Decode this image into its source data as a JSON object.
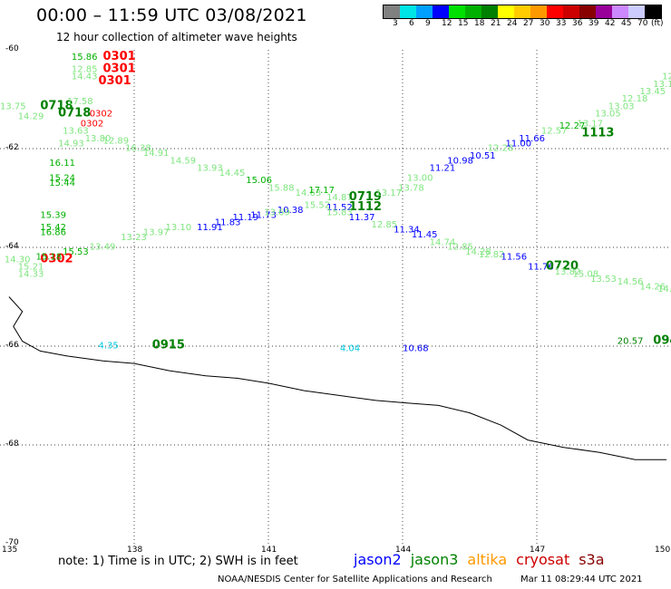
{
  "header": {
    "title": "00:00 – 11:59 UTC 03/08/2021",
    "subtitle": "12 hour collection of altimeter wave heights"
  },
  "legend": {
    "colors": [
      "#808080",
      "#00e5e5",
      "#00a0ff",
      "#0000ff",
      "#00e000",
      "#00b000",
      "#008000",
      "#ffff00",
      "#ffcc00",
      "#ff9900",
      "#ff0000",
      "#cc0000",
      "#880000",
      "#990099",
      "#cc88ff",
      "#ccccff",
      "#000000"
    ],
    "labels": [
      "3",
      "6",
      "9",
      "12",
      "15",
      "18",
      "21",
      "24",
      "27",
      "30",
      "33",
      "36",
      "39",
      "42",
      "45",
      "70",
      "(ft)"
    ]
  },
  "axes": {
    "x_ticks": [
      "135",
      "138",
      "141",
      "144",
      "147",
      "150"
    ],
    "y_ticks": [
      "-60",
      "-62",
      "-64",
      "-66",
      "-68",
      "-70"
    ]
  },
  "map": {
    "lon_range": [
      135,
      150
    ],
    "lat_range": [
      -70,
      -60
    ],
    "grid_lons": [
      138,
      141,
      144,
      147
    ],
    "grid_lats": [
      -62,
      -64,
      -66,
      -68
    ],
    "coastline": [
      [
        135.2,
        -65.0
      ],
      [
        135.5,
        -65.3
      ],
      [
        135.3,
        -65.6
      ],
      [
        135.5,
        -65.9
      ],
      [
        135.9,
        -66.1
      ],
      [
        136.5,
        -66.2
      ],
      [
        137.3,
        -66.3
      ],
      [
        138.0,
        -66.35
      ],
      [
        138.8,
        -66.5
      ],
      [
        139.6,
        -66.6
      ],
      [
        140.3,
        -66.65
      ],
      [
        141.0,
        -66.75
      ],
      [
        141.8,
        -66.9
      ],
      [
        142.6,
        -67.0
      ],
      [
        143.4,
        -67.1
      ],
      [
        144.1,
        -67.15
      ],
      [
        144.8,
        -67.2
      ],
      [
        145.5,
        -67.35
      ],
      [
        146.2,
        -67.6
      ],
      [
        146.8,
        -67.9
      ],
      [
        147.6,
        -68.05
      ],
      [
        148.4,
        -68.15
      ],
      [
        149.2,
        -68.3
      ],
      [
        149.9,
        -68.3
      ]
    ],
    "labels": [
      {
        "text": "15.86",
        "lon": 136.6,
        "lat": -60.2,
        "color": "#00b000"
      },
      {
        "text": "0301",
        "lon": 137.3,
        "lat": -60.2,
        "color": "#ff0000",
        "bold": true
      },
      {
        "text": "12.85",
        "lon": 136.6,
        "lat": -60.45,
        "color": "#7fe57f"
      },
      {
        "text": "0301",
        "lon": 137.3,
        "lat": -60.45,
        "color": "#ff0000",
        "bold": true
      },
      {
        "text": "14.43",
        "lon": 136.6,
        "lat": -60.6,
        "color": "#7fe57f"
      },
      {
        "text": "0301",
        "lon": 137.2,
        "lat": -60.7,
        "color": "#ff0000",
        "bold": true
      },
      {
        "text": "13.75",
        "lon": 135.0,
        "lat": -61.2,
        "color": "#7fe57f"
      },
      {
        "text": "0718",
        "lon": 135.9,
        "lat": -61.2,
        "color": "#008000",
        "bold": true
      },
      {
        "text": "17.58",
        "lon": 136.5,
        "lat": -61.1,
        "color": "#7fe57f"
      },
      {
        "text": "0718",
        "lon": 136.3,
        "lat": -61.35,
        "color": "#008000",
        "bold": true
      },
      {
        "text": "0302",
        "lon": 137.0,
        "lat": -61.35,
        "color": "#ff0000"
      },
      {
        "text": "14.29",
        "lon": 135.4,
        "lat": -61.4,
        "color": "#7fe57f"
      },
      {
        "text": "0302",
        "lon": 136.8,
        "lat": -61.55,
        "color": "#ff0000"
      },
      {
        "text": "13.63",
        "lon": 136.4,
        "lat": -61.7,
        "color": "#7fe57f"
      },
      {
        "text": "13.80",
        "lon": 136.9,
        "lat": -61.85,
        "color": "#7fe57f"
      },
      {
        "text": "14.93",
        "lon": 136.3,
        "lat": -61.95,
        "color": "#7fe57f"
      },
      {
        "text": "12.89",
        "lon": 137.3,
        "lat": -61.9,
        "color": "#7fe57f"
      },
      {
        "text": "16.38",
        "lon": 137.8,
        "lat": -62.05,
        "color": "#7fe57f"
      },
      {
        "text": "14.91",
        "lon": 138.2,
        "lat": -62.15,
        "color": "#7fe57f"
      },
      {
        "text": "14.59",
        "lon": 138.8,
        "lat": -62.3,
        "color": "#7fe57f"
      },
      {
        "text": "13.93",
        "lon": 139.4,
        "lat": -62.45,
        "color": "#7fe57f"
      },
      {
        "text": "14.45",
        "lon": 139.9,
        "lat": -62.55,
        "color": "#7fe57f"
      },
      {
        "text": "15.06",
        "lon": 140.5,
        "lat": -62.7,
        "color": "#00b000"
      },
      {
        "text": "15.88",
        "lon": 141.0,
        "lat": -62.85,
        "color": "#7fe57f"
      },
      {
        "text": "14.63",
        "lon": 141.6,
        "lat": -62.95,
        "color": "#7fe57f"
      },
      {
        "text": "17.17",
        "lon": 141.9,
        "lat": -62.9,
        "color": "#00b000"
      },
      {
        "text": "14.87",
        "lon": 142.3,
        "lat": -63.05,
        "color": "#7fe57f"
      },
      {
        "text": "0719",
        "lon": 142.8,
        "lat": -63.05,
        "color": "#008000",
        "bold": true
      },
      {
        "text": "13.17",
        "lon": 143.4,
        "lat": -62.95,
        "color": "#7fe57f"
      },
      {
        "text": "13.78",
        "lon": 143.9,
        "lat": -62.85,
        "color": "#7fe57f"
      },
      {
        "text": "13.00",
        "lon": 144.1,
        "lat": -62.65,
        "color": "#7fe57f"
      },
      {
        "text": "11.21",
        "lon": 144.6,
        "lat": -62.45,
        "color": "#0000ff"
      },
      {
        "text": "10.98",
        "lon": 145.0,
        "lat": -62.3,
        "color": "#0000ff"
      },
      {
        "text": "10.51",
        "lon": 145.5,
        "lat": -62.2,
        "color": "#0000ff"
      },
      {
        "text": "12.28",
        "lon": 145.9,
        "lat": -62.05,
        "color": "#7fe57f"
      },
      {
        "text": "11.00",
        "lon": 146.3,
        "lat": -61.95,
        "color": "#0000ff"
      },
      {
        "text": "11.66",
        "lon": 146.6,
        "lat": -61.85,
        "color": "#0000ff"
      },
      {
        "text": "12.57",
        "lon": 147.1,
        "lat": -61.7,
        "color": "#7fe57f"
      },
      {
        "text": "12.27",
        "lon": 147.5,
        "lat": -61.6,
        "color": "#00b000"
      },
      {
        "text": "13.17",
        "lon": 147.9,
        "lat": -61.55,
        "color": "#7fe57f"
      },
      {
        "text": "1113",
        "lon": 148.0,
        "lat": -61.75,
        "color": "#008000",
        "bold": true
      },
      {
        "text": "13.05",
        "lon": 148.3,
        "lat": -61.35,
        "color": "#7fe57f"
      },
      {
        "text": "13.03",
        "lon": 148.6,
        "lat": -61.2,
        "color": "#7fe57f"
      },
      {
        "text": "12.18",
        "lon": 148.9,
        "lat": -61.05,
        "color": "#7fe57f"
      },
      {
        "text": "13.45",
        "lon": 149.3,
        "lat": -60.9,
        "color": "#7fe57f"
      },
      {
        "text": "13.14",
        "lon": 149.6,
        "lat": -60.75,
        "color": "#7fe57f"
      },
      {
        "text": "12.1",
        "lon": 149.8,
        "lat": -60.6,
        "color": "#7fe57f"
      },
      {
        "text": "16.11",
        "lon": 136.1,
        "lat": -62.35,
        "color": "#00b000"
      },
      {
        "text": "15.24",
        "lon": 136.1,
        "lat": -62.65,
        "color": "#00b000"
      },
      {
        "text": "15.44",
        "lon": 136.1,
        "lat": -62.75,
        "color": "#00b000"
      },
      {
        "text": "15.39",
        "lon": 135.9,
        "lat": -63.4,
        "color": "#00b000"
      },
      {
        "text": "15.42",
        "lon": 135.9,
        "lat": -63.65,
        "color": "#00b000"
      },
      {
        "text": "16.86",
        "lon": 135.9,
        "lat": -63.75,
        "color": "#00b000"
      },
      {
        "text": "10.38",
        "lon": 141.2,
        "lat": -63.3,
        "color": "#0000ff"
      },
      {
        "text": "15.52",
        "lon": 141.8,
        "lat": -63.2,
        "color": "#7fe57f"
      },
      {
        "text": "11.52",
        "lon": 142.3,
        "lat": -63.25,
        "color": "#0000ff"
      },
      {
        "text": "1112",
        "lon": 142.8,
        "lat": -63.25,
        "color": "#008000",
        "bold": true
      },
      {
        "text": "15.83",
        "lon": 142.3,
        "lat": -63.35,
        "color": "#7fe57f"
      },
      {
        "text": "11.37",
        "lon": 142.8,
        "lat": -63.45,
        "color": "#0000ff"
      },
      {
        "text": "12.85",
        "lon": 143.3,
        "lat": -63.6,
        "color": "#7fe57f"
      },
      {
        "text": "11.34",
        "lon": 143.8,
        "lat": -63.7,
        "color": "#0000ff"
      },
      {
        "text": "11.45",
        "lon": 144.2,
        "lat": -63.8,
        "color": "#0000ff"
      },
      {
        "text": "14.74",
        "lon": 144.6,
        "lat": -63.95,
        "color": "#7fe57f"
      },
      {
        "text": "12.85",
        "lon": 145.0,
        "lat": -64.05,
        "color": "#7fe57f"
      },
      {
        "text": "14.28",
        "lon": 145.4,
        "lat": -64.15,
        "color": "#7fe57f"
      },
      {
        "text": "12.82",
        "lon": 145.7,
        "lat": -64.2,
        "color": "#7fe57f"
      },
      {
        "text": "11.56",
        "lon": 146.2,
        "lat": -64.25,
        "color": "#0000ff"
      },
      {
        "text": "11.76",
        "lon": 146.8,
        "lat": -64.45,
        "color": "#0000ff"
      },
      {
        "text": "0720",
        "lon": 147.2,
        "lat": -64.45,
        "color": "#008000",
        "bold": true
      },
      {
        "text": "13.82",
        "lon": 147.4,
        "lat": -64.55,
        "color": "#7fe57f"
      },
      {
        "text": "15.08",
        "lon": 147.8,
        "lat": -64.6,
        "color": "#7fe57f"
      },
      {
        "text": "13.53",
        "lon": 148.2,
        "lat": -64.7,
        "color": "#7fe57f"
      },
      {
        "text": "14.56",
        "lon": 148.8,
        "lat": -64.75,
        "color": "#7fe57f"
      },
      {
        "text": "14.26",
        "lon": 149.3,
        "lat": -64.85,
        "color": "#7fe57f"
      },
      {
        "text": "14.2",
        "lon": 149.7,
        "lat": -64.9,
        "color": "#7fe57f"
      },
      {
        "text": "11.91",
        "lon": 139.4,
        "lat": -63.65,
        "color": "#0000ff"
      },
      {
        "text": "11.83",
        "lon": 139.8,
        "lat": -63.55,
        "color": "#0000ff"
      },
      {
        "text": "11.19",
        "lon": 140.2,
        "lat": -63.45,
        "color": "#0000ff"
      },
      {
        "text": "11.73",
        "lon": 140.6,
        "lat": -63.4,
        "color": "#0000ff"
      },
      {
        "text": "13.69",
        "lon": 140.9,
        "lat": -63.35,
        "color": "#7fe57f"
      },
      {
        "text": "13.10",
        "lon": 138.7,
        "lat": -63.65,
        "color": "#7fe57f"
      },
      {
        "text": "13.97",
        "lon": 138.2,
        "lat": -63.75,
        "color": "#7fe57f"
      },
      {
        "text": "13.23",
        "lon": 137.7,
        "lat": -63.85,
        "color": "#7fe57f"
      },
      {
        "text": "13.49",
        "lon": 137.0,
        "lat": -64.05,
        "color": "#7fe57f"
      },
      {
        "text": "15.53",
        "lon": 136.4,
        "lat": -64.15,
        "color": "#00b000"
      },
      {
        "text": "0302",
        "lon": 135.9,
        "lat": -64.3,
        "color": "#ff0000",
        "bold": true
      },
      {
        "text": "15.18",
        "lon": 135.8,
        "lat": -64.25,
        "color": "#00b000"
      },
      {
        "text": "14.30",
        "lon": 135.1,
        "lat": -64.3,
        "color": "#7fe57f"
      },
      {
        "text": "15.21",
        "lon": 135.4,
        "lat": -64.45,
        "color": "#7fe57f"
      },
      {
        "text": "14.33",
        "lon": 135.4,
        "lat": -64.6,
        "color": "#7fe57f"
      },
      {
        "text": "4.35",
        "lon": 137.2,
        "lat": -66.05,
        "color": "#00c8e0"
      },
      {
        "text": "0915",
        "lon": 138.4,
        "lat": -66.05,
        "color": "#008000",
        "bold": true
      },
      {
        "text": "4.04",
        "lon": 142.6,
        "lat": -66.1,
        "color": "#00c8e0"
      },
      {
        "text": "10.68",
        "lon": 144.0,
        "lat": -66.1,
        "color": "#0000ff"
      },
      {
        "text": "20.57",
        "lon": 148.8,
        "lat": -65.95,
        "color": "#008000"
      },
      {
        "text": "094",
        "lon": 149.6,
        "lat": -65.95,
        "color": "#008000",
        "bold": true
      }
    ]
  },
  "footer": {
    "note": "note: 1) Time is in UTC; 2) SWH is in feet",
    "satellites": [
      {
        "name": "jason2",
        "color": "#0000ff"
      },
      {
        "name": "jason3",
        "color": "#008000"
      },
      {
        "name": "altika",
        "color": "#ff9900"
      },
      {
        "name": "cryosat",
        "color": "#cc0000"
      },
      {
        "name": "s3a",
        "color": "#880000"
      }
    ],
    "credit": "NOAA/NESDIS Center for Satellite Applications and Research",
    "timestamp": "Mar 11 08:29:44 UTC 2021"
  }
}
